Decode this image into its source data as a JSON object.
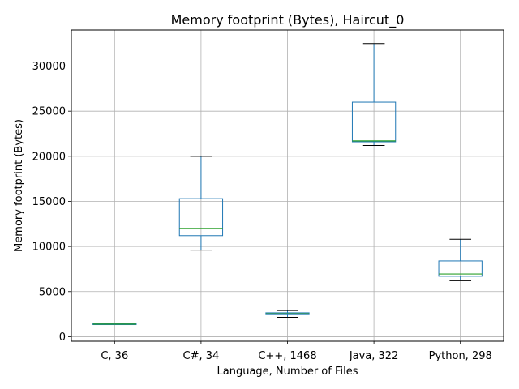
{
  "chart_data": {
    "type": "box",
    "title": "Memory footprint (Bytes), Haircut_0",
    "xlabel": "Language, Number of Files",
    "ylabel": "Memory footprint (Bytes)",
    "ylim": [
      -500,
      34000
    ],
    "yticks": [
      0,
      5000,
      10000,
      15000,
      20000,
      25000,
      30000
    ],
    "grid": true,
    "categories": [
      "C, 36",
      "C#, 34",
      "C++, 1468",
      "Java, 322",
      "Python, 298"
    ],
    "boxes": [
      {
        "whisker_low": 1350,
        "q1": 1380,
        "median": 1400,
        "q3": 1430,
        "whisker_high": 1450
      },
      {
        "whisker_low": 9600,
        "q1": 11200,
        "median": 12000,
        "q3": 15300,
        "whisker_high": 20000
      },
      {
        "whisker_low": 2150,
        "q1": 2450,
        "median": 2550,
        "q3": 2650,
        "whisker_high": 2900
      },
      {
        "whisker_low": 21200,
        "q1": 21600,
        "median": 21700,
        "q3": 26000,
        "whisker_high": 32500
      },
      {
        "whisker_low": 6200,
        "q1": 6700,
        "median": 6950,
        "q3": 8400,
        "whisker_high": 10800
      }
    ],
    "colors": {
      "box": "#1f77b4",
      "median": "#2ca02c",
      "whisker_cap": "#000000",
      "grid": "#b0b0b0"
    }
  }
}
